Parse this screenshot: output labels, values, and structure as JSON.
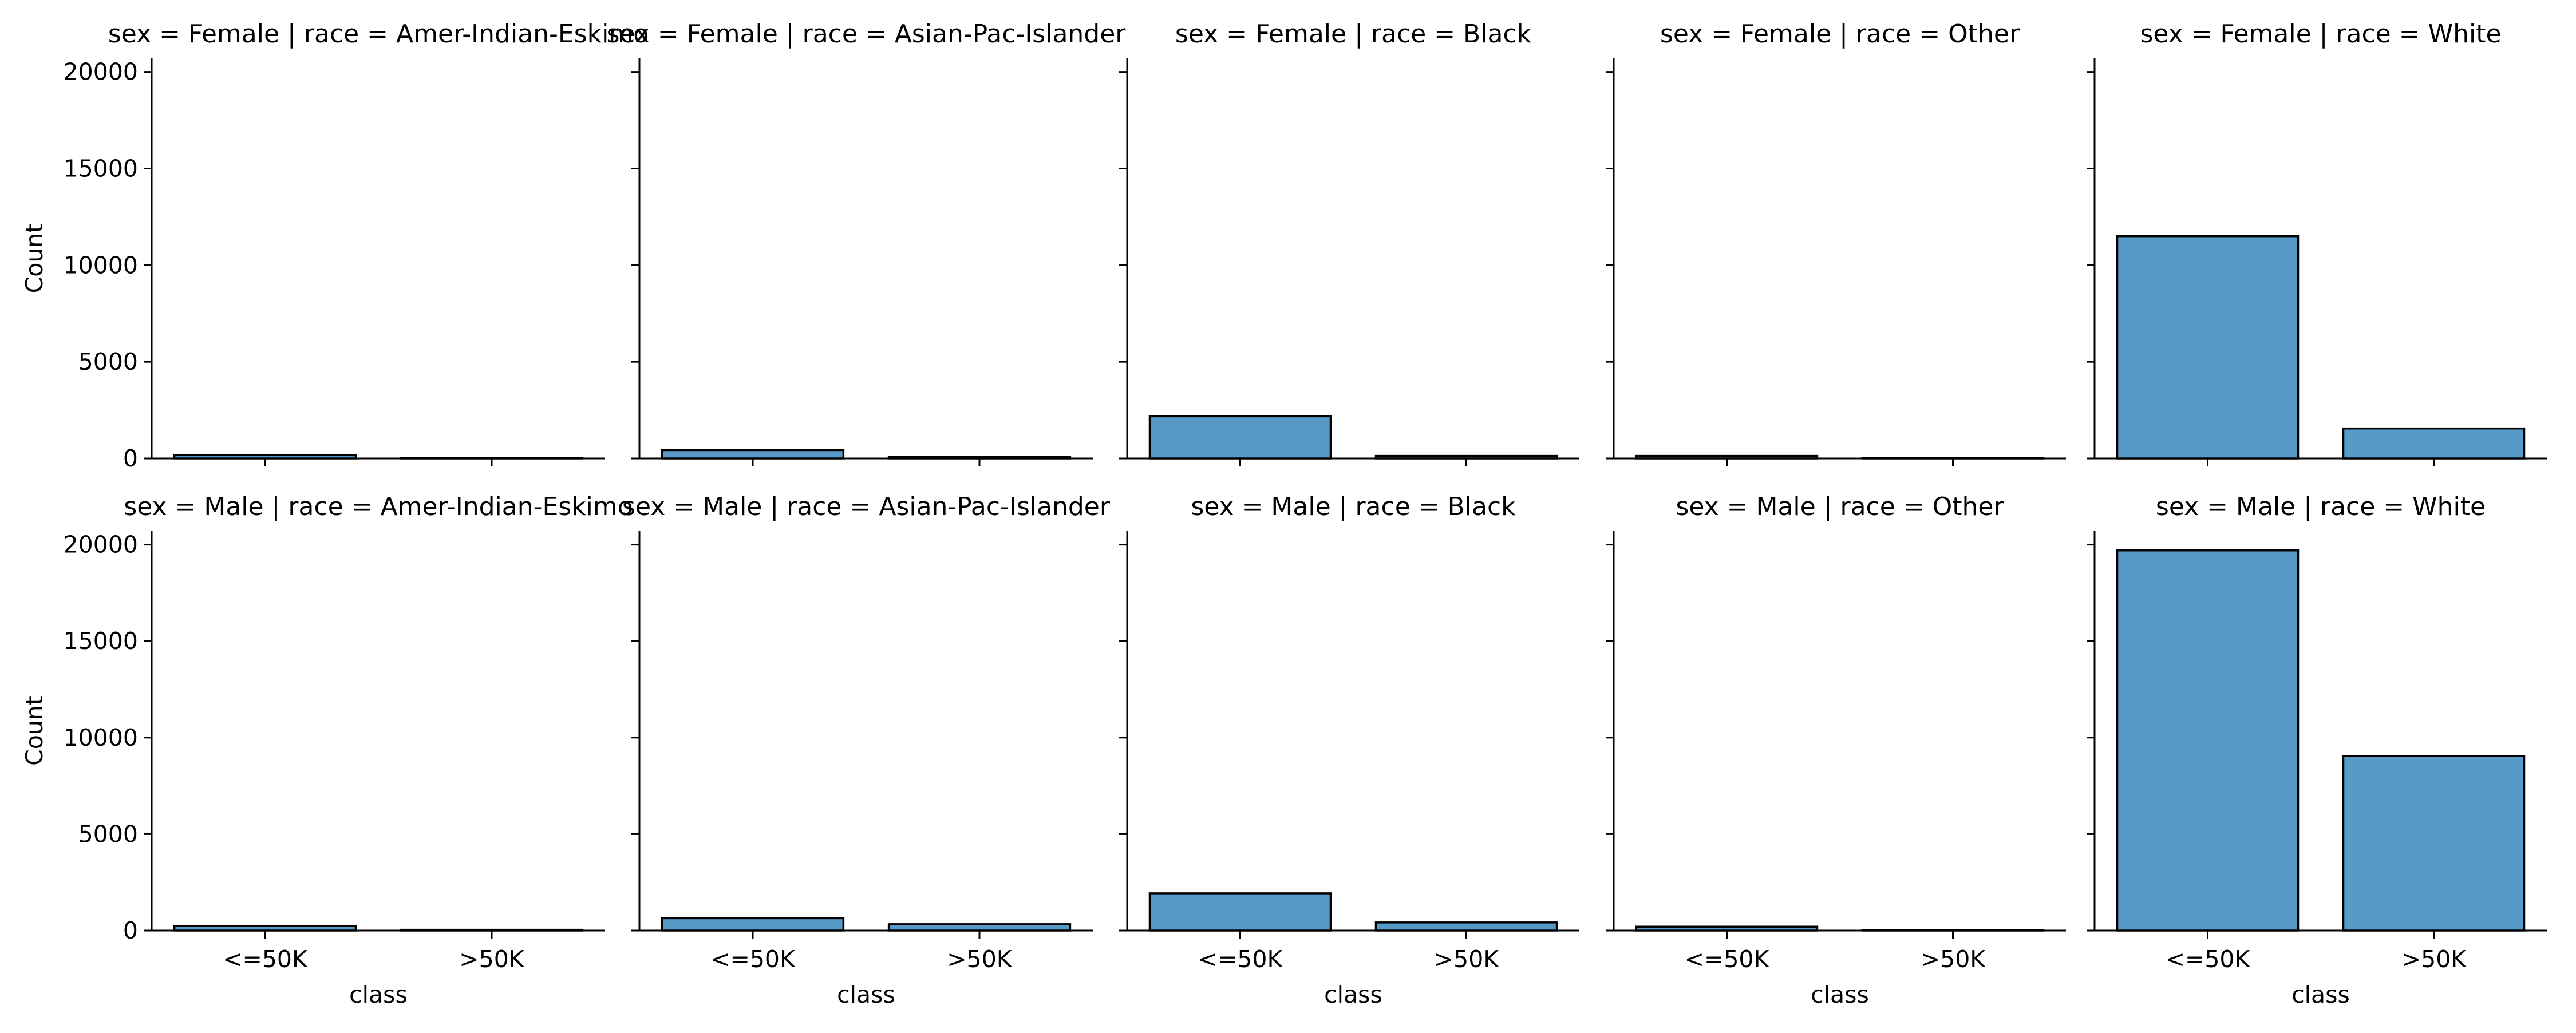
{
  "chart_data": {
    "type": "bar",
    "layout": "facet-grid",
    "rows_var": "sex",
    "cols_var": "race",
    "xlabel": "class",
    "ylabel": "Count",
    "categories": [
      "<=50K",
      ">50K"
    ],
    "ylim": [
      0,
      20700
    ],
    "yticks": [
      0,
      5000,
      10000,
      15000,
      20000
    ],
    "grid": false,
    "legend": "none",
    "bar_color": "#5799c7",
    "edge_color": "#000000",
    "facets": [
      {
        "title": "sex = Female | race = Amer-Indian-Eskimo",
        "row": 0,
        "col": 0,
        "values": [
          170,
          20
        ]
      },
      {
        "title": "sex = Female | race = Asian-Pac-Islander",
        "row": 0,
        "col": 1,
        "values": [
          430,
          70
        ]
      },
      {
        "title": "sex = Female | race = Black",
        "row": 0,
        "col": 2,
        "values": [
          2180,
          130
        ]
      },
      {
        "title": "sex = Female | race = Other",
        "row": 0,
        "col": 3,
        "values": [
          130,
          20
        ]
      },
      {
        "title": "sex = Female | race = White",
        "row": 0,
        "col": 4,
        "values": [
          11500,
          1550
        ]
      },
      {
        "title": "sex = Male | race = Amer-Indian-Eskimo",
        "row": 1,
        "col": 0,
        "values": [
          240,
          40
        ]
      },
      {
        "title": "sex = Male | race = Asian-Pac-Islander",
        "row": 1,
        "col": 1,
        "values": [
          640,
          330
        ]
      },
      {
        "title": "sex = Male | race = Black",
        "row": 1,
        "col": 2,
        "values": [
          1930,
          420
        ]
      },
      {
        "title": "sex = Male | race = Other",
        "row": 1,
        "col": 3,
        "values": [
          200,
          30
        ]
      },
      {
        "title": "sex = Male | race = White",
        "row": 1,
        "col": 4,
        "values": [
          19700,
          9050
        ]
      }
    ]
  }
}
